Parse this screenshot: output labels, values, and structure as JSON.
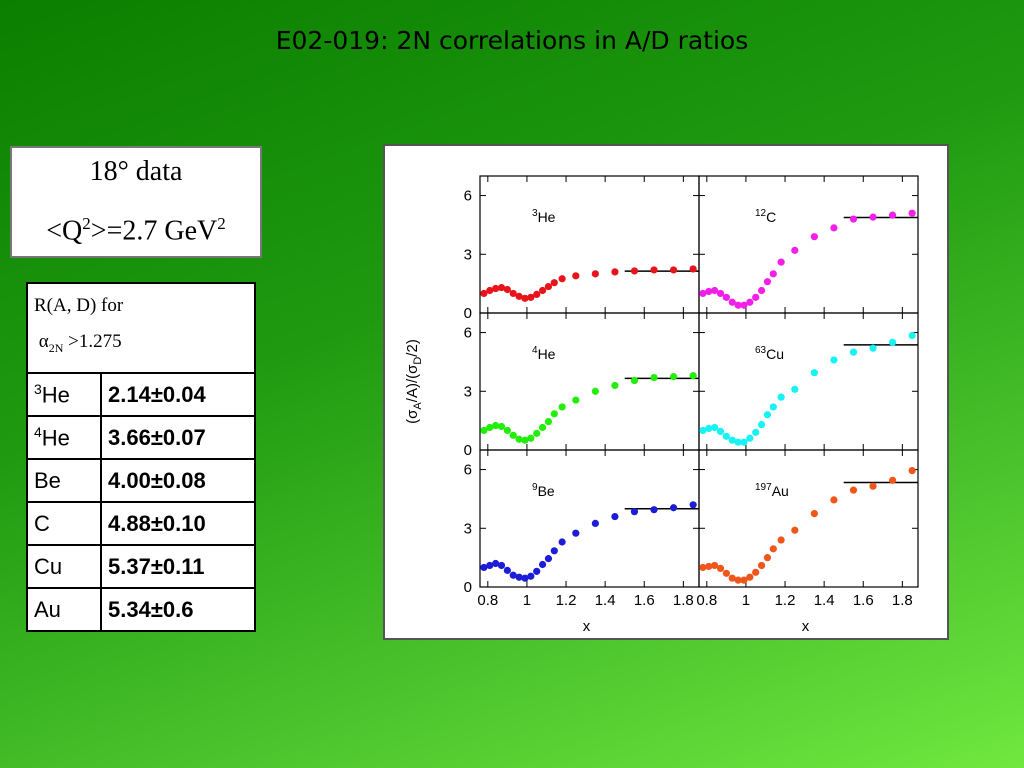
{
  "slide": {
    "title": "E02-019: 2N correlations in A/D ratios"
  },
  "info_box": {
    "line1": "18° data",
    "line2_pre": "<Q",
    "line2_sup": "2",
    "line2_mid": ">=2.7 GeV",
    "line2_sup2": "2"
  },
  "table": {
    "header_line1": "R(A, D) for",
    "header_alpha": "α",
    "header_sub": "2N",
    "header_rest": " >1.275",
    "rows": [
      {
        "sup": "3",
        "nucleus": "He",
        "value": "2.14±0.04"
      },
      {
        "sup": "4",
        "nucleus": "He",
        "value": "3.66±0.07"
      },
      {
        "sup": "",
        "nucleus": "Be",
        "value": "4.00±0.08"
      },
      {
        "sup": "",
        "nucleus": "C",
        "value": "4.88±0.10"
      },
      {
        "sup": "",
        "nucleus": "Cu",
        "value": "5.37±0.11"
      },
      {
        "sup": "",
        "nucleus": "Au",
        "value": "5.34±0.6"
      }
    ]
  },
  "chart_data": {
    "type": "scatter",
    "xlabel": "x",
    "ylabel": "(σA/A)/(σD/2)",
    "ylabel_parts": [
      "(σ",
      "A",
      "/A)/(σ",
      "D",
      "/2)"
    ],
    "xlim": [
      0.76,
      1.88
    ],
    "ylim": [
      0,
      7
    ],
    "xticks": [
      0.8,
      1,
      1.2,
      1.4,
      1.6,
      1.8
    ],
    "xtick_labels": [
      "0.8",
      "1",
      "1.2",
      "1.4",
      "1.6",
      "1.8"
    ],
    "yticks": [
      0,
      3,
      6
    ],
    "ytick_labels": [
      "0",
      "3",
      "6"
    ],
    "x": [
      0.78,
      0.81,
      0.84,
      0.87,
      0.9,
      0.93,
      0.96,
      0.99,
      1.02,
      1.05,
      1.08,
      1.11,
      1.14,
      1.18,
      1.25,
      1.35,
      1.45,
      1.55,
      1.65,
      1.75,
      1.85
    ],
    "panels": [
      {
        "sup": "3",
        "name": "He",
        "color": "#e8141c",
        "row": 0,
        "col": 0,
        "ratio": 2.14,
        "plateau_x": [
          1.5,
          1.88
        ],
        "y": [
          1.0,
          1.15,
          1.25,
          1.3,
          1.2,
          1.0,
          0.85,
          0.75,
          0.8,
          0.95,
          1.15,
          1.35,
          1.55,
          1.75,
          1.9,
          2.0,
          2.1,
          2.15,
          2.2,
          2.2,
          2.25
        ]
      },
      {
        "sup": "12",
        "name": "C",
        "color": "#f21fe8",
        "row": 0,
        "col": 1,
        "ratio": 4.88,
        "plateau_x": [
          1.5,
          1.88
        ],
        "y": [
          1.0,
          1.1,
          1.15,
          1.0,
          0.8,
          0.55,
          0.4,
          0.4,
          0.55,
          0.8,
          1.15,
          1.6,
          2.0,
          2.6,
          3.2,
          3.9,
          4.35,
          4.8,
          4.9,
          5.0,
          5.1
        ]
      },
      {
        "sup": "4",
        "name": "He",
        "color": "#22ee0a",
        "row": 1,
        "col": 0,
        "ratio": 3.66,
        "plateau_x": [
          1.5,
          1.88
        ],
        "y": [
          1.0,
          1.15,
          1.25,
          1.2,
          1.0,
          0.75,
          0.55,
          0.5,
          0.6,
          0.85,
          1.15,
          1.45,
          1.85,
          2.2,
          2.55,
          3.0,
          3.3,
          3.55,
          3.7,
          3.75,
          3.8
        ]
      },
      {
        "sup": "63",
        "name": "Cu",
        "color": "#17f2f2",
        "row": 1,
        "col": 1,
        "ratio": 5.37,
        "plateau_x": [
          1.5,
          1.88
        ],
        "y": [
          1.0,
          1.1,
          1.15,
          0.95,
          0.7,
          0.5,
          0.4,
          0.4,
          0.6,
          0.9,
          1.3,
          1.8,
          2.2,
          2.7,
          3.1,
          3.95,
          4.6,
          5.0,
          5.2,
          5.5,
          5.85
        ]
      },
      {
        "sup": "9",
        "name": "Be",
        "color": "#1d1dd8",
        "row": 2,
        "col": 0,
        "ratio": 4.0,
        "plateau_x": [
          1.5,
          1.88
        ],
        "y": [
          1.0,
          1.1,
          1.2,
          1.1,
          0.85,
          0.6,
          0.5,
          0.45,
          0.55,
          0.8,
          1.15,
          1.45,
          1.85,
          2.3,
          2.75,
          3.25,
          3.6,
          3.85,
          3.95,
          4.05,
          4.2
        ]
      },
      {
        "sup": "197",
        "name": "Au",
        "color": "#f0561a",
        "row": 2,
        "col": 1,
        "ratio": 5.34,
        "plateau_x": [
          1.5,
          1.88
        ],
        "y": [
          1.0,
          1.05,
          1.1,
          0.95,
          0.7,
          0.45,
          0.35,
          0.35,
          0.5,
          0.75,
          1.1,
          1.5,
          1.95,
          2.4,
          2.9,
          3.75,
          4.45,
          4.95,
          5.15,
          5.45,
          5.95
        ]
      }
    ]
  }
}
